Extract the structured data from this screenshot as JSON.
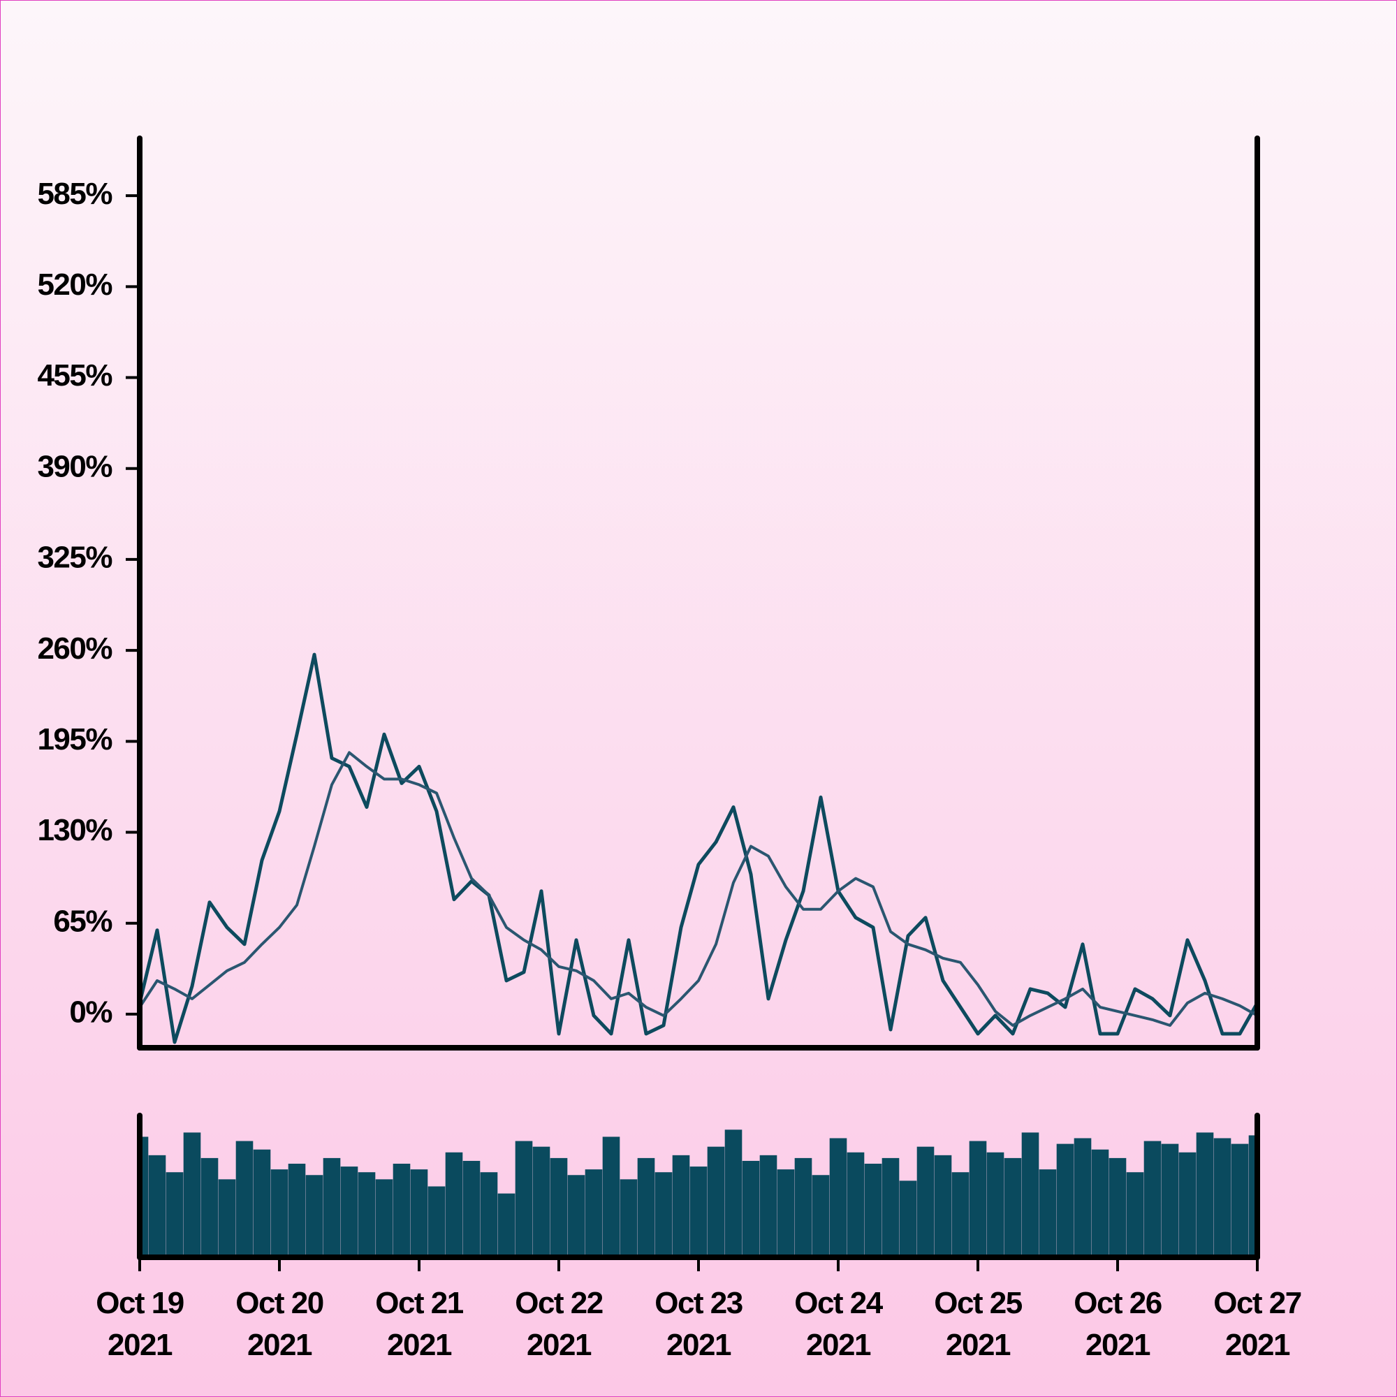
{
  "chart_data": {
    "type": "line",
    "x": [
      0,
      0.125,
      0.25,
      0.375,
      0.5,
      0.625,
      0.75,
      0.875,
      1,
      1.125,
      1.25,
      1.375,
      1.5,
      1.625,
      1.75,
      1.875,
      2,
      2.125,
      2.25,
      2.375,
      2.5,
      2.625,
      2.75,
      2.875,
      3,
      3.125,
      3.25,
      3.375,
      3.5,
      3.625,
      3.75,
      3.875,
      4,
      4.125,
      4.25,
      4.375,
      4.5,
      4.625,
      4.75,
      4.875,
      5,
      5.125,
      5.25,
      5.375,
      5.5,
      5.625,
      5.75,
      5.875,
      6,
      6.125,
      6.25,
      6.375,
      6.5,
      6.625,
      6.75,
      6.875,
      7,
      7.125,
      7.25,
      7.375,
      7.5,
      7.625,
      7.75,
      7.875,
      8
    ],
    "series": [
      {
        "color": "#0d4a5e",
        "width": 5,
        "values": [
          8,
          60,
          -20,
          20,
          80,
          62,
          50,
          110,
          145,
          200,
          257,
          183,
          177,
          148,
          200,
          165,
          177,
          145,
          82,
          95,
          85,
          24,
          30,
          88,
          -14,
          53,
          -1,
          -14,
          53,
          -14,
          -8,
          62,
          107,
          123,
          148,
          100,
          11,
          53,
          88,
          155,
          88,
          69,
          62,
          -11,
          56,
          69,
          24,
          5,
          -14,
          -1,
          -14,
          18,
          15,
          5,
          50,
          -14,
          -14,
          18,
          11,
          -1,
          53,
          24,
          -14,
          -14,
          8
        ]
      },
      {
        "color": "#2a5670",
        "width": 4,
        "values": [
          5,
          24,
          18,
          11,
          21,
          31,
          37,
          50,
          62,
          78,
          120,
          164,
          187,
          177,
          168,
          168,
          164,
          158,
          126,
          97,
          85,
          62,
          53,
          46,
          34,
          31,
          24,
          11,
          15,
          5,
          -1,
          11,
          24,
          50,
          94,
          120,
          113,
          91,
          75,
          75,
          88,
          97,
          91,
          59,
          50,
          46,
          40,
          37,
          21,
          2,
          -8,
          -1,
          5,
          11,
          18,
          5,
          2,
          -1,
          -4,
          -8,
          8,
          15,
          11,
          6,
          -1
        ]
      }
    ],
    "volume": {
      "color": "#0a4a5e",
      "ylim": [
        0,
        100
      ],
      "values": [
        85,
        72,
        60,
        88,
        70,
        55,
        82,
        76,
        62,
        66,
        58,
        70,
        64,
        60,
        55,
        66,
        62,
        50,
        74,
        68,
        60,
        45,
        82,
        78,
        70,
        58,
        62,
        85,
        55,
        70,
        60,
        72,
        64,
        78,
        90,
        68,
        72,
        62,
        70,
        58,
        84,
        74,
        66,
        70,
        54,
        78,
        72,
        60,
        82,
        74,
        70,
        88,
        62,
        80,
        84,
        76,
        70,
        60,
        82,
        80,
        74,
        88,
        84,
        80,
        86
      ]
    },
    "xlim": [
      0,
      8
    ],
    "xticks": [
      {
        "value": 0,
        "label": "Oct 19\n2021"
      },
      {
        "value": 1,
        "label": "Oct 20\n2021"
      },
      {
        "value": 2,
        "label": "Oct 21\n2021"
      },
      {
        "value": 3,
        "label": "Oct 22\n2021"
      },
      {
        "value": 4,
        "label": "Oct 23\n2021"
      },
      {
        "value": 5,
        "label": "Oct 24\n2021"
      },
      {
        "value": 6,
        "label": "Oct 25\n2021"
      },
      {
        "value": 7,
        "label": "Oct 26\n2021"
      },
      {
        "value": 8,
        "label": "Oct 27\n2021"
      }
    ],
    "ylim": [
      -24,
      626
    ],
    "yticks": [
      {
        "value": 0,
        "label": "0%"
      },
      {
        "value": 65,
        "label": "65%"
      },
      {
        "value": 130,
        "label": "130%"
      },
      {
        "value": 195,
        "label": "195%"
      },
      {
        "value": 260,
        "label": "260%"
      },
      {
        "value": 325,
        "label": "325%"
      },
      {
        "value": 390,
        "label": "390%"
      },
      {
        "value": 455,
        "label": "455%"
      },
      {
        "value": 520,
        "label": "520%"
      },
      {
        "value": 585,
        "label": "585%"
      }
    ]
  }
}
